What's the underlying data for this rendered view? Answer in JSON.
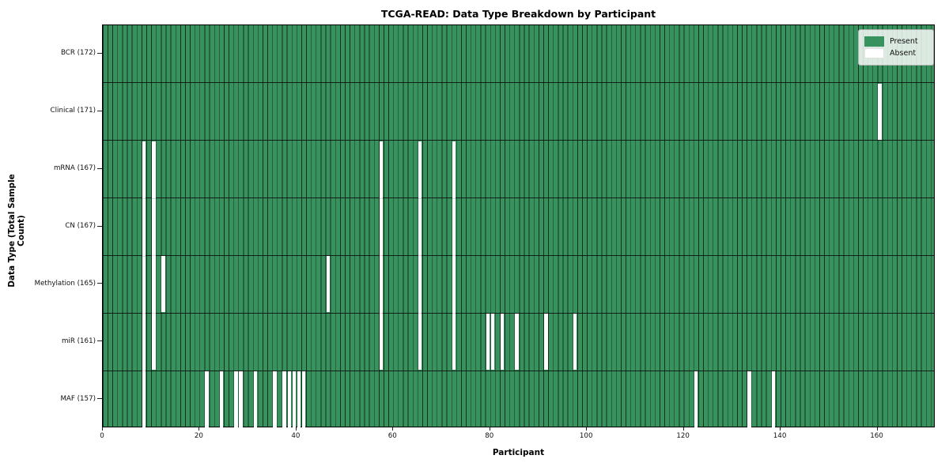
{
  "title": "TCGA-READ: Data Type Breakdown by Participant",
  "x_axis": {
    "label": "Participant",
    "ticks": [
      0,
      20,
      40,
      60,
      80,
      100,
      120,
      140,
      160
    ]
  },
  "y_axis": {
    "label": "Data Type (Total Sample Count)"
  },
  "legend": {
    "present_label": "Present",
    "absent_label": "Absent"
  },
  "colors": {
    "present": "#38925E",
    "absent": "#FFFFFF",
    "cell_edge": "#12301E",
    "row_divider": "#0A0A0A"
  },
  "chart_data": {
    "type": "heatmap",
    "title": "TCGA-READ: Data Type Breakdown by Participant",
    "xlabel": "Participant",
    "ylabel": "Data Type (Total Sample Count)",
    "x_range": [
      0,
      172
    ],
    "participants": 172,
    "legend_position": "upper right",
    "states": [
      "Present",
      "Absent"
    ],
    "rows": [
      {
        "label": "BCR (172)",
        "data_type": "BCR",
        "total": 172,
        "absent_participants": []
      },
      {
        "label": "Clinical (171)",
        "data_type": "Clinical",
        "total": 171,
        "absent_participants": [
          160
        ]
      },
      {
        "label": "mRNA (167)",
        "data_type": "mRNA",
        "total": 167,
        "absent_participants": [
          8,
          10,
          57,
          65,
          72
        ]
      },
      {
        "label": "CN (167)",
        "data_type": "CN",
        "total": 167,
        "absent_participants": [
          8,
          10,
          57,
          65,
          72
        ]
      },
      {
        "label": "Methylation (165)",
        "data_type": "Methylation",
        "total": 165,
        "absent_participants": [
          8,
          10,
          12,
          46,
          57,
          65,
          72
        ]
      },
      {
        "label": "miR (161)",
        "data_type": "miR",
        "total": 161,
        "absent_participants": [
          8,
          10,
          57,
          65,
          72,
          79,
          80,
          82,
          85,
          91,
          97
        ]
      },
      {
        "label": "MAF (157)",
        "data_type": "MAF",
        "total": 157,
        "absent_participants": [
          8,
          21,
          24,
          27,
          28,
          31,
          35,
          37,
          38,
          39,
          40,
          41,
          122,
          133,
          138
        ]
      }
    ]
  }
}
